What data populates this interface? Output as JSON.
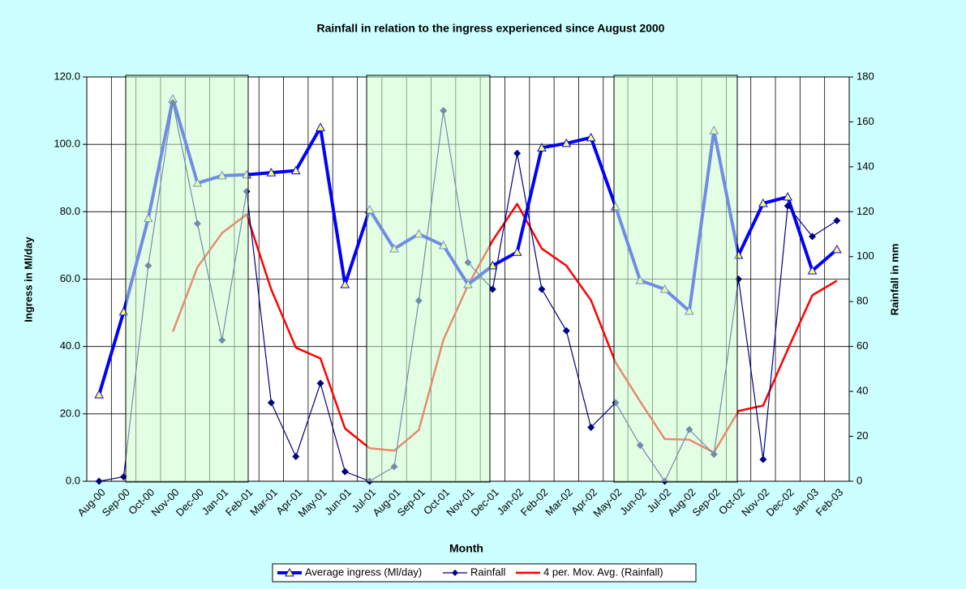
{
  "chart_data": {
    "type": "line",
    "title": "Rainfall in relation to the ingress experienced since August 2000",
    "x_label": "Month",
    "y_label": "Ingress in Ml/day",
    "y2_label": "Rainfall in mm",
    "categories": [
      "Aug-00",
      "Sep-00",
      "Oct-00",
      "Nov-00",
      "Dec-00",
      "Jan-01",
      "Feb-01",
      "Mar-01",
      "Apr-01",
      "May-01",
      "Jun-01",
      "Jul-01",
      "Aug-01",
      "Sep-01",
      "Oct-01",
      "Nov-01",
      "Dec-01",
      "Jan-02",
      "Feb-02",
      "Mar-02",
      "Apr-02",
      "May-02",
      "Jun-02",
      "Jul-02",
      "Aug-02",
      "Sep-02",
      "Oct-02",
      "Nov-02",
      "Dec-02",
      "Jan-03",
      "Feb-03"
    ],
    "series": [
      {
        "name": "Average ingress (Ml/day)",
        "color": "#0000ff",
        "axis": "y",
        "marker": "triangle",
        "values": [
          25.7,
          50.3,
          78,
          113.5,
          88.5,
          90.7,
          91,
          91.6,
          92.2,
          105,
          58.4,
          80.6,
          69,
          73.4,
          70,
          58.4,
          64,
          68,
          99,
          100.3,
          102,
          81.5,
          59.6,
          57,
          50.5,
          104.1,
          67.1,
          82.5,
          84.4,
          62.5,
          68.8
        ]
      },
      {
        "name": "Rainfall",
        "color": "#000080",
        "axis": "y2",
        "marker": "diamond",
        "values": [
          0,
          2,
          96,
          168.5,
          114.7,
          62.8,
          129,
          35,
          11,
          43.6,
          4.3,
          0,
          6.5,
          80.4,
          165,
          97.4,
          85.5,
          146,
          85.5,
          67,
          24,
          35,
          16,
          0,
          23,
          12,
          90,
          9.7,
          122.6,
          109,
          116
        ]
      },
      {
        "name": "4 per. Mov. Avg. (Rainfall)",
        "color": "#ff0000",
        "axis": "y2",
        "marker": "none",
        "values": [
          null,
          null,
          null,
          66.6,
          95.3,
          110.5,
          118.8,
          85.4,
          59.5,
          54.7,
          23.5,
          14.7,
          13.6,
          22.8,
          63,
          87.3,
          107.1,
          123.5,
          103.6,
          96,
          80.6,
          52.9,
          35.5,
          18.8,
          18.5,
          12.8,
          31.3,
          33.7,
          58.6,
          82.8,
          89.3
        ]
      }
    ],
    "ylim": [
      0,
      120
    ],
    "yticks": [
      {
        "value": 0,
        "label": "0.0"
      },
      {
        "value": 20,
        "label": "20.0"
      },
      {
        "value": 40,
        "label": "40.0"
      },
      {
        "value": 60,
        "label": "60.0"
      },
      {
        "value": 80,
        "label": "80.0"
      },
      {
        "value": 100,
        "label": "100.0"
      },
      {
        "value": 120,
        "label": "120.0"
      }
    ],
    "y2lim": [
      0,
      180
    ],
    "y2ticks": [
      0,
      20,
      40,
      60,
      80,
      100,
      120,
      140,
      160,
      180
    ],
    "grid": true,
    "legend": "bottom"
  }
}
